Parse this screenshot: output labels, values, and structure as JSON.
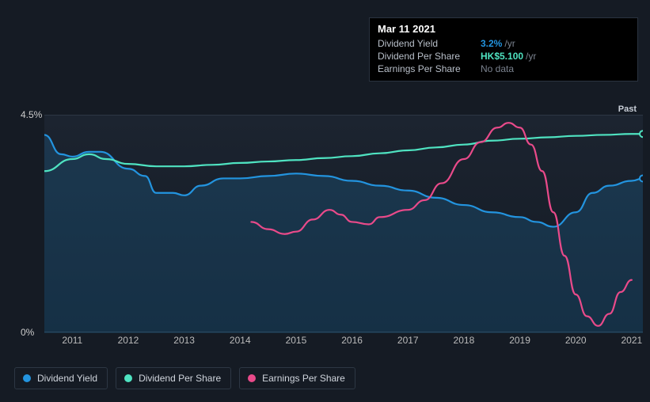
{
  "tooltip": {
    "date": "Mar 11 2021",
    "rows": [
      {
        "label": "Dividend Yield",
        "value": "3.2%",
        "unit": "/yr",
        "color": "#2394df"
      },
      {
        "label": "Dividend Per Share",
        "value": "HK$5.100",
        "unit": "/yr",
        "color": "#4fe3c1"
      },
      {
        "label": "Earnings Per Share",
        "value": "No data",
        "nodata": true
      }
    ]
  },
  "chart": {
    "type": "line",
    "background": "#151b24",
    "plot_bg_top": "#1c2430",
    "plot_bg_bottom": "#131a24",
    "grid_color": "#2d3744",
    "y_ticks": [
      {
        "label": "4.5%",
        "pos": 0
      },
      {
        "label": "0%",
        "pos": 1
      }
    ],
    "past_label": "Past",
    "x_years": [
      "2011",
      "2012",
      "2013",
      "2014",
      "2015",
      "2016",
      "2017",
      "2018",
      "2019",
      "2020",
      "2021"
    ],
    "x_min": 2010.5,
    "x_max": 2021.2,
    "y_min": 0,
    "y_max": 4.5,
    "series": [
      {
        "name": "Dividend Yield",
        "color": "#2394df",
        "fill": true,
        "fill_color": "rgba(35,148,223,0.18)",
        "points": [
          [
            2010.5,
            4.1
          ],
          [
            2010.8,
            3.7
          ],
          [
            2011.0,
            3.65
          ],
          [
            2011.3,
            3.75
          ],
          [
            2011.5,
            3.75
          ],
          [
            2012.0,
            3.4
          ],
          [
            2012.3,
            3.25
          ],
          [
            2012.5,
            2.9
          ],
          [
            2012.8,
            2.9
          ],
          [
            2013.0,
            2.85
          ],
          [
            2013.3,
            3.05
          ],
          [
            2013.7,
            3.2
          ],
          [
            2014.0,
            3.2
          ],
          [
            2014.5,
            3.25
          ],
          [
            2015.0,
            3.3
          ],
          [
            2015.5,
            3.25
          ],
          [
            2016.0,
            3.15
          ],
          [
            2016.5,
            3.05
          ],
          [
            2017.0,
            2.95
          ],
          [
            2017.5,
            2.8
          ],
          [
            2018.0,
            2.65
          ],
          [
            2018.5,
            2.5
          ],
          [
            2019.0,
            2.4
          ],
          [
            2019.3,
            2.3
          ],
          [
            2019.6,
            2.2
          ],
          [
            2020.0,
            2.5
          ],
          [
            2020.3,
            2.9
          ],
          [
            2020.6,
            3.05
          ],
          [
            2021.0,
            3.15
          ],
          [
            2021.2,
            3.2
          ]
        ]
      },
      {
        "name": "Dividend Per Share",
        "color": "#4fe3c1",
        "fill": false,
        "points": [
          [
            2010.5,
            3.35
          ],
          [
            2011.0,
            3.6
          ],
          [
            2011.3,
            3.7
          ],
          [
            2011.6,
            3.6
          ],
          [
            2012.0,
            3.5
          ],
          [
            2012.5,
            3.45
          ],
          [
            2013.0,
            3.45
          ],
          [
            2013.5,
            3.48
          ],
          [
            2014.0,
            3.52
          ],
          [
            2014.5,
            3.55
          ],
          [
            2015.0,
            3.58
          ],
          [
            2015.5,
            3.62
          ],
          [
            2016.0,
            3.66
          ],
          [
            2016.5,
            3.72
          ],
          [
            2017.0,
            3.78
          ],
          [
            2017.5,
            3.84
          ],
          [
            2018.0,
            3.9
          ],
          [
            2018.5,
            3.98
          ],
          [
            2019.0,
            4.02
          ],
          [
            2019.5,
            4.05
          ],
          [
            2020.0,
            4.08
          ],
          [
            2020.5,
            4.1
          ],
          [
            2021.0,
            4.12
          ],
          [
            2021.2,
            4.12
          ]
        ]
      },
      {
        "name": "Earnings Per Share",
        "color": "#e94a8a",
        "fill": false,
        "points": [
          [
            2014.2,
            2.3
          ],
          [
            2014.5,
            2.15
          ],
          [
            2014.8,
            2.05
          ],
          [
            2015.0,
            2.1
          ],
          [
            2015.3,
            2.35
          ],
          [
            2015.6,
            2.55
          ],
          [
            2015.8,
            2.45
          ],
          [
            2016.0,
            2.3
          ],
          [
            2016.3,
            2.25
          ],
          [
            2016.5,
            2.4
          ],
          [
            2017.0,
            2.55
          ],
          [
            2017.3,
            2.75
          ],
          [
            2017.6,
            3.1
          ],
          [
            2018.0,
            3.6
          ],
          [
            2018.3,
            3.95
          ],
          [
            2018.6,
            4.25
          ],
          [
            2018.8,
            4.35
          ],
          [
            2019.0,
            4.25
          ],
          [
            2019.2,
            3.9
          ],
          [
            2019.4,
            3.35
          ],
          [
            2019.6,
            2.5
          ],
          [
            2019.8,
            1.6
          ],
          [
            2020.0,
            0.8
          ],
          [
            2020.2,
            0.35
          ],
          [
            2020.4,
            0.15
          ],
          [
            2020.6,
            0.4
          ],
          [
            2020.8,
            0.85
          ],
          [
            2021.0,
            1.1
          ]
        ]
      }
    ],
    "end_dots": [
      {
        "series": 0,
        "color": "#2394df"
      },
      {
        "series": 1,
        "color": "#4fe3c1"
      }
    ]
  },
  "legend": [
    {
      "label": "Dividend Yield",
      "color": "#2394df"
    },
    {
      "label": "Dividend Per Share",
      "color": "#4fe3c1"
    },
    {
      "label": "Earnings Per Share",
      "color": "#e94a8a"
    }
  ]
}
